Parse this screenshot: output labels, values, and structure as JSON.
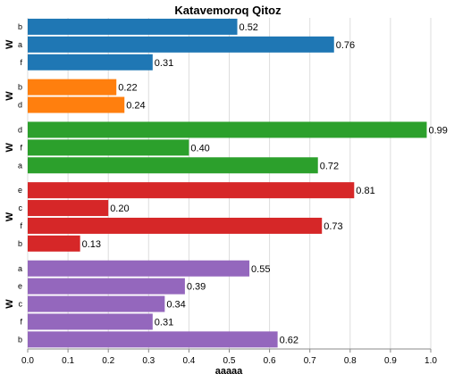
{
  "chart_data": {
    "type": "bar",
    "orientation": "horizontal",
    "title": "Katavemoroq Qitoz",
    "xlabel": "aaaaa",
    "xlim": [
      0,
      1.0
    ],
    "xticks": [
      "0.0",
      "0.1",
      "0.2",
      "0.3",
      "0.4",
      "0.5",
      "0.6",
      "0.7",
      "0.8",
      "0.9",
      "1.0"
    ],
    "grid": true,
    "groups": [
      {
        "label": "W",
        "color": "#1f77b4",
        "bars": [
          {
            "category": "b",
            "value": 0.52,
            "label": "0.52"
          },
          {
            "category": "a",
            "value": 0.76,
            "label": "0.76"
          },
          {
            "category": "f",
            "value": 0.31,
            "label": "0.31"
          }
        ]
      },
      {
        "label": "W",
        "color": "#ff7f0e",
        "bars": [
          {
            "category": "b",
            "value": 0.22,
            "label": "0.22"
          },
          {
            "category": "d",
            "value": 0.24,
            "label": "0.24"
          }
        ]
      },
      {
        "label": "W",
        "color": "#2ca02c",
        "bars": [
          {
            "category": "d",
            "value": 0.99,
            "label": "0.99"
          },
          {
            "category": "f",
            "value": 0.4,
            "label": "0.40"
          },
          {
            "category": "a",
            "value": 0.72,
            "label": "0.72"
          }
        ]
      },
      {
        "label": "W",
        "color": "#d62728",
        "bars": [
          {
            "category": "e",
            "value": 0.81,
            "label": "0.81"
          },
          {
            "category": "c",
            "value": 0.2,
            "label": "0.20"
          },
          {
            "category": "f",
            "value": 0.73,
            "label": "0.73"
          },
          {
            "category": "b",
            "value": 0.13,
            "label": "0.13"
          }
        ]
      },
      {
        "label": "W",
        "color": "#9467bd",
        "bars": [
          {
            "category": "a",
            "value": 0.55,
            "label": "0.55"
          },
          {
            "category": "e",
            "value": 0.39,
            "label": "0.39"
          },
          {
            "category": "c",
            "value": 0.34,
            "label": "0.34"
          },
          {
            "category": "f",
            "value": 0.31,
            "label": "0.31"
          },
          {
            "category": "b",
            "value": 0.62,
            "label": "0.62"
          }
        ]
      }
    ]
  }
}
